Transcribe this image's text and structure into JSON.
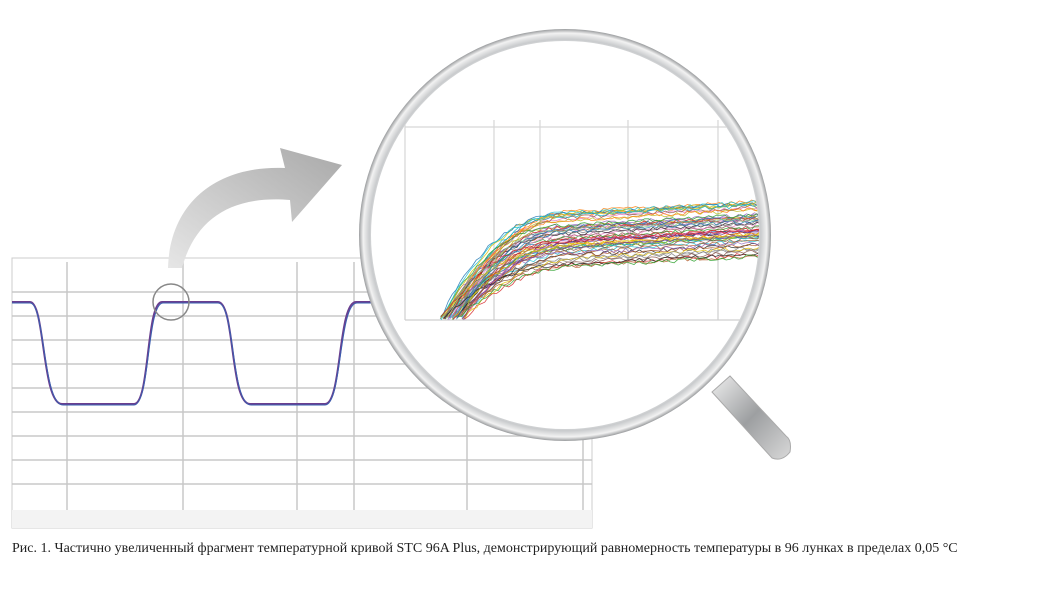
{
  "figure": {
    "caption": "Рис. 1. Частично увеличенный фрагмент температурной кривой STC 96A Plus, демонстрирующий равномерность температуры в 96 лунках в пределах 0,05 °C"
  }
}
